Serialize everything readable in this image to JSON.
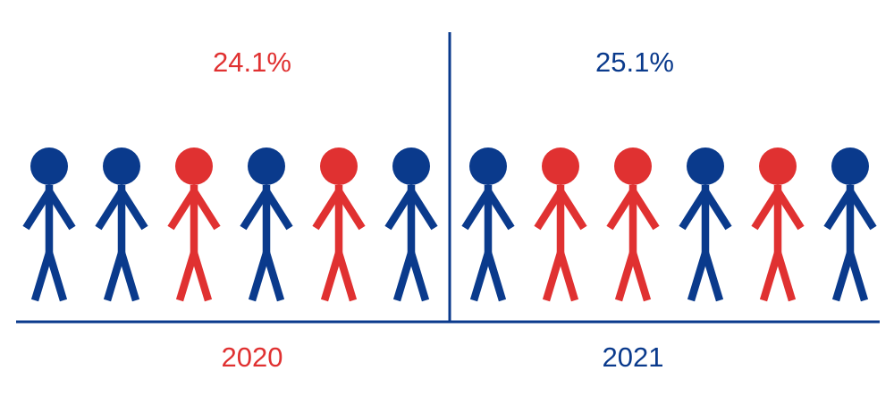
{
  "colors": {
    "blue": "#0a3a8c",
    "red": "#e03131"
  },
  "chart_data": {
    "type": "pictogram",
    "categories": [
      "2020",
      "2021"
    ],
    "values": [
      24.1,
      25.1
    ],
    "value_labels": [
      "24.1%",
      "25.1%"
    ],
    "groups": [
      {
        "year": "2020",
        "value_label": "24.1%",
        "value_color": "#e03131",
        "year_color": "#e03131",
        "figures": [
          "blue",
          "blue",
          "red",
          "blue",
          "red",
          "blue"
        ]
      },
      {
        "year": "2021",
        "value_label": "25.1%",
        "value_color": "#0a3a8c",
        "year_color": "#0a3a8c",
        "figures": [
          "blue",
          "red",
          "red",
          "blue",
          "red",
          "blue"
        ]
      }
    ]
  }
}
